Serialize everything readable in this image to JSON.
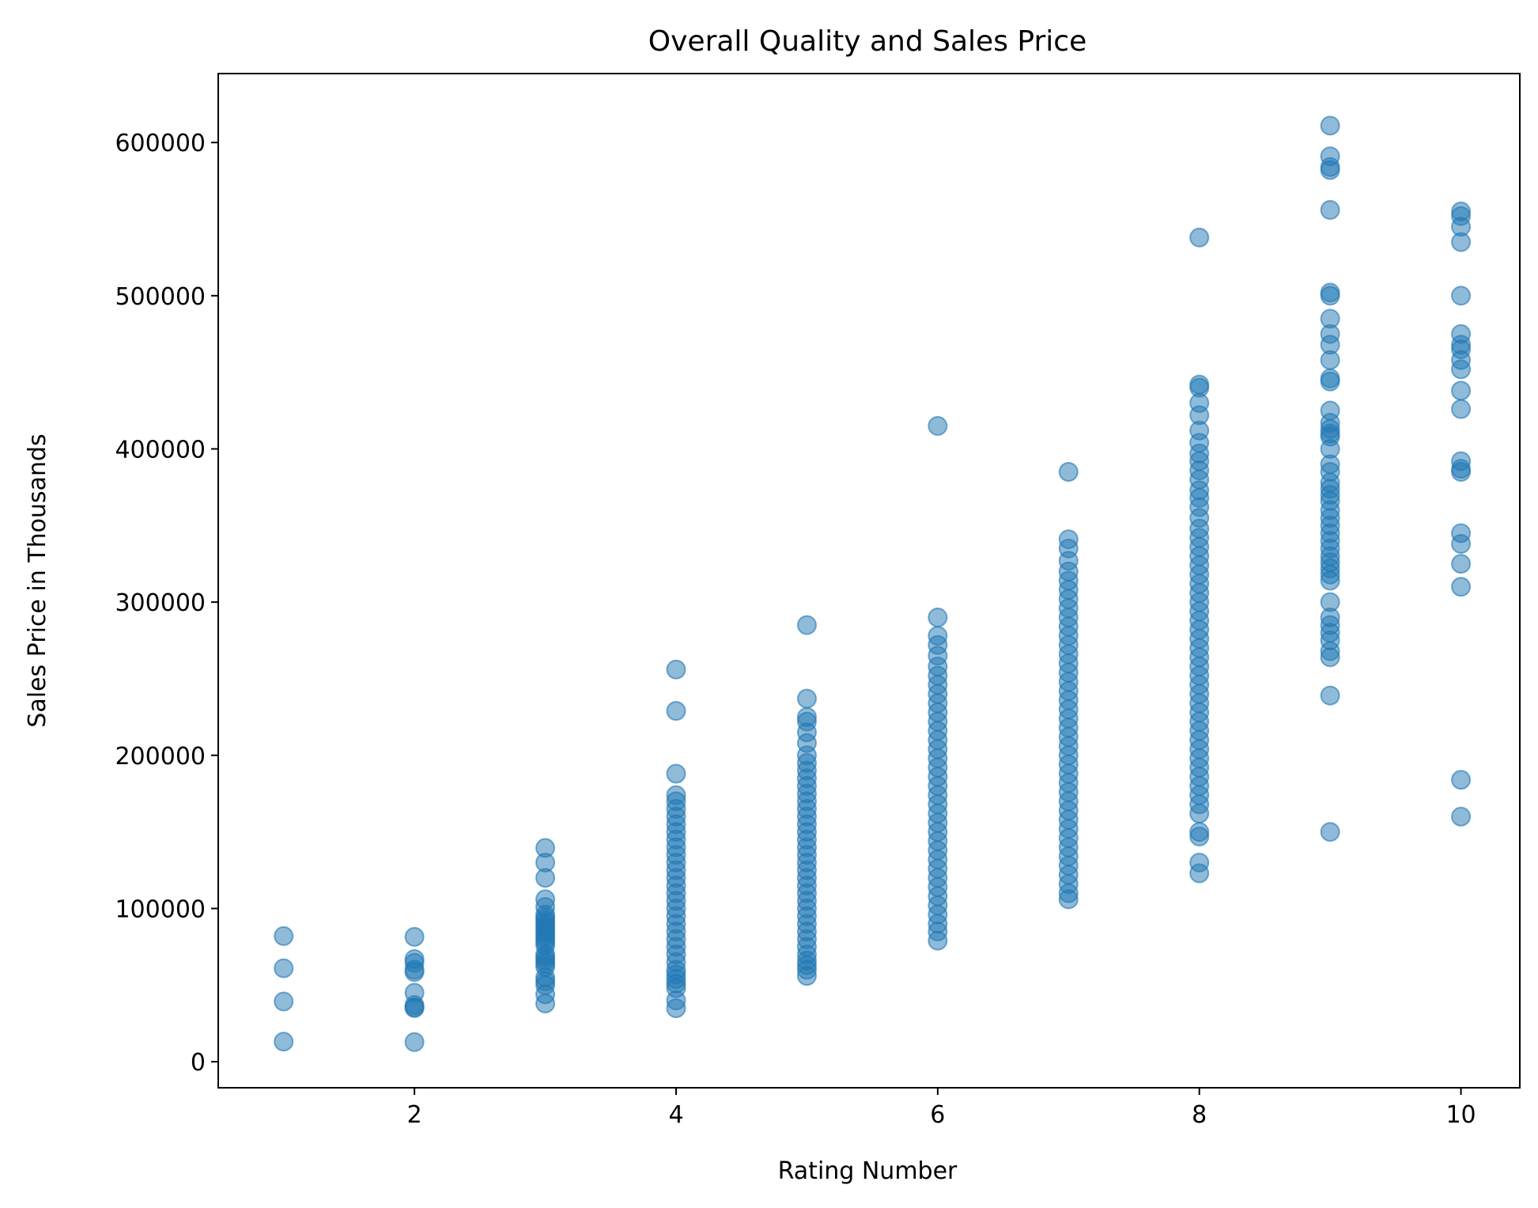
{
  "chart_data": {
    "type": "scatter",
    "title": "Overall Quality and Sales Price",
    "xlabel": "Rating Number",
    "ylabel": "Sales Price in Thousands",
    "xlim": [
      0.5,
      10.45
    ],
    "ylim": [
      -17000,
      645000
    ],
    "xticks": [
      2,
      4,
      6,
      8,
      10
    ],
    "yticks": [
      0,
      100000,
      200000,
      300000,
      400000,
      500000,
      600000
    ],
    "grid": false,
    "legend": "none",
    "marker_color": "#1f77b4",
    "marker_alpha": 0.5,
    "points": [
      {
        "x": 1,
        "y": [
          82000,
          61000,
          39300,
          13100
        ]
      },
      {
        "x": 2,
        "y": [
          81500,
          67000,
          64500,
          60000,
          58500,
          45000,
          37000,
          35500,
          35000,
          12800
        ]
      },
      {
        "x": 3,
        "y": [
          139500,
          130000,
          120000,
          106000,
          101000,
          96000,
          94000,
          92000,
          90000,
          88000,
          86000,
          84000,
          82000,
          80000,
          78000,
          76000,
          70000,
          68000,
          66000,
          64000,
          62000,
          55000,
          52500,
          50000,
          44000,
          38000
        ]
      },
      {
        "x": 4,
        "y": [
          256000,
          229000,
          188000,
          174000,
          170000,
          165000,
          160000,
          155000,
          150000,
          145000,
          140000,
          135000,
          130000,
          125000,
          120000,
          115000,
          110000,
          105000,
          100000,
          95000,
          90000,
          85000,
          80000,
          75000,
          70000,
          65000,
          60000,
          57000,
          54000,
          51000,
          48000,
          40000,
          34900
        ]
      },
      {
        "x": 5,
        "y": [
          285000,
          237000,
          225000,
          222000,
          215000,
          208000,
          200000,
          195000,
          190000,
          185000,
          180000,
          175000,
          170000,
          165000,
          160000,
          155000,
          150000,
          145000,
          140000,
          135000,
          130000,
          125000,
          120000,
          115000,
          110000,
          105000,
          100000,
          95000,
          90000,
          85000,
          80000,
          75000,
          70000,
          66000,
          63000,
          60000,
          56000
        ]
      },
      {
        "x": 6,
        "y": [
          415000,
          290000,
          278000,
          272000,
          265000,
          258000,
          252000,
          246000,
          240000,
          234000,
          228000,
          222000,
          216000,
          210000,
          204000,
          198000,
          192000,
          186000,
          180000,
          174000,
          168000,
          162000,
          156000,
          150000,
          144000,
          138000,
          132000,
          126000,
          120000,
          114000,
          108000,
          102000,
          96000,
          90000,
          85000,
          79000
        ]
      },
      {
        "x": 7,
        "y": [
          385000,
          341000,
          335000,
          327000,
          320000,
          314000,
          308000,
          302000,
          296000,
          290000,
          284000,
          278000,
          272000,
          266000,
          260000,
          254000,
          248000,
          242000,
          236000,
          230000,
          224000,
          218000,
          212000,
          206000,
          200000,
          194000,
          188000,
          182000,
          176000,
          170000,
          164000,
          158000,
          152000,
          146000,
          140000,
          134000,
          128000,
          122000,
          116000,
          110000,
          106000
        ]
      },
      {
        "x": 8,
        "y": [
          538000,
          442000,
          440000,
          430000,
          422000,
          412000,
          404000,
          397000,
          392000,
          386000,
          380000,
          373000,
          368000,
          362000,
          355000,
          348000,
          342000,
          336000,
          330000,
          324000,
          318000,
          312000,
          306000,
          300000,
          294000,
          288000,
          282000,
          276000,
          270000,
          264000,
          258000,
          252000,
          246000,
          240000,
          234000,
          228000,
          222000,
          216000,
          210000,
          204000,
          198000,
          192000,
          186000,
          180000,
          174000,
          168000,
          162000,
          150000,
          147000,
          130000,
          123000
        ]
      },
      {
        "x": 9,
        "y": [
          611000,
          591000,
          584000,
          582000,
          556000,
          502000,
          500000,
          485000,
          475000,
          468000,
          458000,
          446000,
          444000,
          425000,
          417000,
          413000,
          410000,
          408000,
          400000,
          390000,
          385000,
          378000,
          374000,
          370000,
          366000,
          360000,
          355000,
          350000,
          345000,
          340000,
          335000,
          330000,
          326000,
          322000,
          318000,
          314000,
          300000,
          290000,
          285000,
          280000,
          275000,
          268000,
          264000,
          239000,
          150000
        ]
      },
      {
        "x": 10,
        "y": [
          555000,
          552000,
          545000,
          535000,
          500000,
          475000,
          468000,
          465000,
          458000,
          452000,
          438000,
          426000,
          392000,
          387000,
          385000,
          345000,
          338000,
          325000,
          310000,
          184000,
          160000
        ]
      }
    ]
  }
}
